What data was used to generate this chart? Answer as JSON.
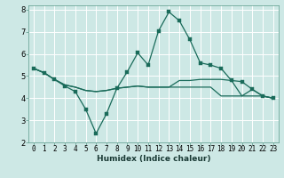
{
  "xlabel": "Humidex (Indice chaleur)",
  "bg_color": "#cde8e5",
  "grid_color": "#ffffff",
  "line_color": "#1a6b5a",
  "xlim": [
    -0.5,
    23.5
  ],
  "ylim": [
    2,
    8.2
  ],
  "yticks": [
    2,
    3,
    4,
    5,
    6,
    7,
    8
  ],
  "xticks": [
    0,
    1,
    2,
    3,
    4,
    5,
    6,
    7,
    8,
    9,
    10,
    11,
    12,
    13,
    14,
    15,
    16,
    17,
    18,
    19,
    20,
    21,
    22,
    23
  ],
  "series1_x": [
    0,
    1,
    2,
    3,
    4,
    5,
    6,
    7,
    8,
    9,
    10,
    11,
    12,
    13,
    14,
    15,
    16,
    17,
    18,
    19,
    20,
    21,
    22,
    23
  ],
  "series1_y": [
    5.35,
    5.15,
    4.85,
    4.55,
    4.3,
    3.5,
    2.4,
    3.3,
    4.45,
    5.2,
    6.05,
    5.5,
    7.05,
    7.9,
    7.5,
    6.65,
    5.6,
    5.5,
    5.35,
    4.8,
    4.75,
    4.4,
    4.1,
    4.0
  ],
  "series2_x": [
    0,
    1,
    2,
    3,
    4,
    5,
    6,
    7,
    8,
    9,
    10,
    11,
    12,
    13,
    14,
    15,
    16,
    17,
    18,
    19,
    20,
    21,
    22,
    23
  ],
  "series2_y": [
    5.35,
    5.15,
    4.85,
    4.6,
    4.5,
    4.35,
    4.3,
    4.35,
    4.45,
    4.5,
    4.55,
    4.5,
    4.5,
    4.5,
    4.8,
    4.8,
    4.85,
    4.85,
    4.85,
    4.8,
    4.1,
    4.4,
    4.1,
    4.0
  ],
  "series3_x": [
    0,
    1,
    2,
    3,
    4,
    5,
    6,
    7,
    8,
    9,
    10,
    11,
    12,
    13,
    14,
    15,
    16,
    17,
    18,
    19,
    20,
    21,
    22,
    23
  ],
  "series3_y": [
    5.35,
    5.15,
    4.85,
    4.6,
    4.5,
    4.35,
    4.3,
    4.35,
    4.45,
    4.5,
    4.55,
    4.5,
    4.5,
    4.5,
    4.5,
    4.5,
    4.5,
    4.5,
    4.1,
    4.1,
    4.1,
    4.1,
    4.1,
    4.0
  ],
  "xlabel_fontsize": 6.5,
  "tick_fontsize": 5.5,
  "ytick_fontsize": 6.0
}
